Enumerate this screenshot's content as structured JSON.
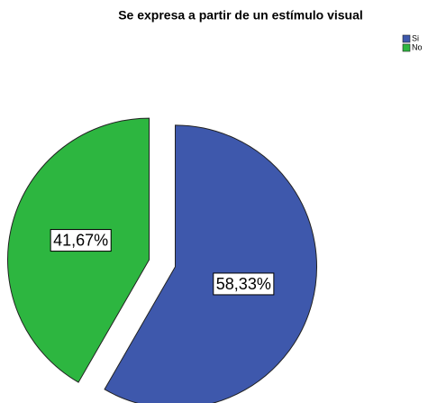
{
  "chart_data": {
    "type": "pie",
    "title": "Se expresa a partir de un estímulo visual",
    "categories": [
      "Si",
      "No"
    ],
    "values": [
      58.33,
      41.67
    ],
    "value_labels": [
      "58,33%",
      "41,67%"
    ],
    "colors": [
      "#3e58ac",
      "#2db640"
    ],
    "legend": "top-right"
  }
}
